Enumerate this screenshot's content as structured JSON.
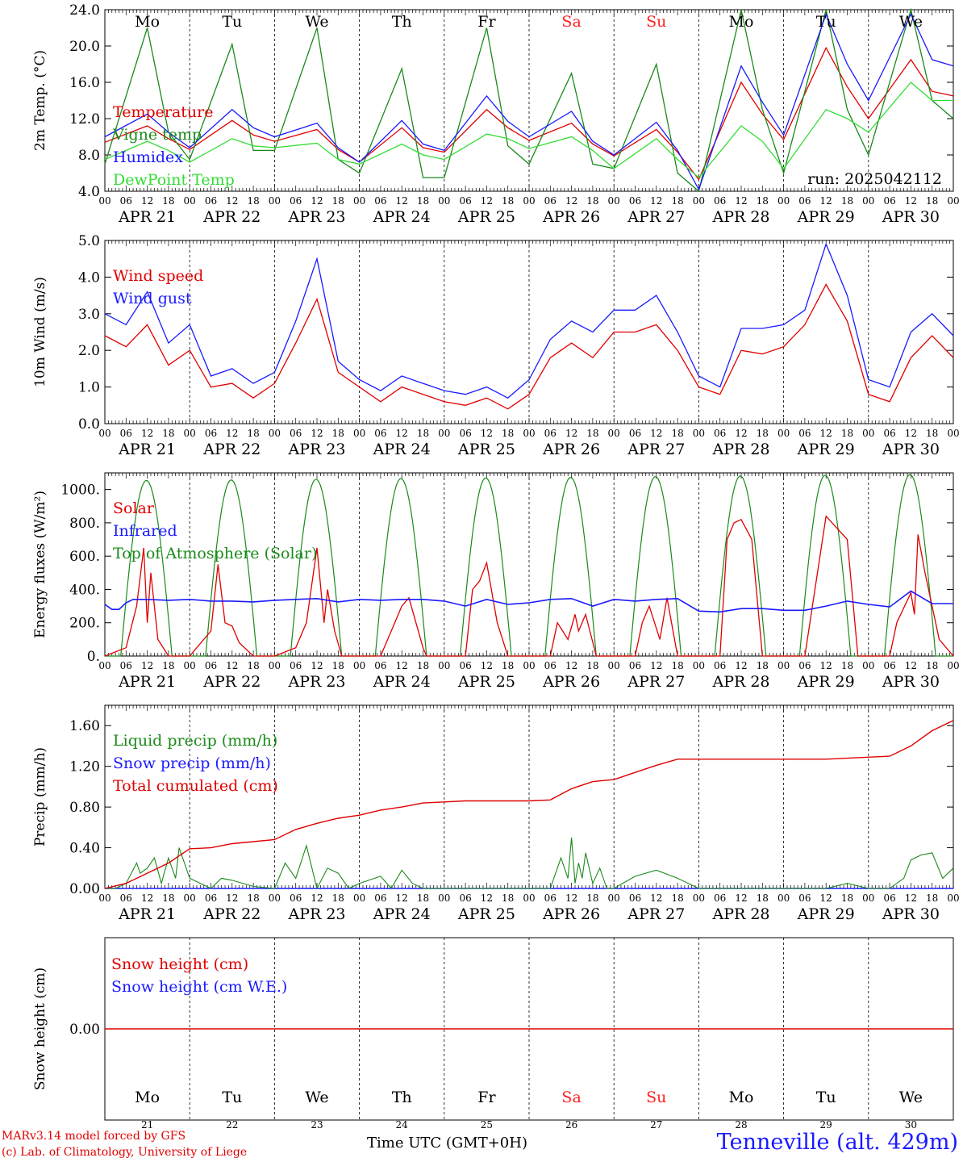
{
  "days": [
    {
      "date": "APR 21",
      "dow": "Mo",
      "num": "21",
      "weekend": false
    },
    {
      "date": "APR 22",
      "dow": "Tu",
      "num": "22",
      "weekend": false
    },
    {
      "date": "APR 23",
      "dow": "We",
      "num": "23",
      "weekend": false
    },
    {
      "date": "APR 24",
      "dow": "Th",
      "num": "24",
      "weekend": false
    },
    {
      "date": "APR 25",
      "dow": "Fr",
      "num": "25",
      "weekend": false
    },
    {
      "date": "APR 26",
      "dow": "Sa",
      "num": "26",
      "weekend": true
    },
    {
      "date": "APR 27",
      "dow": "Su",
      "num": "27",
      "weekend": true
    },
    {
      "date": "APR 28",
      "dow": "Mo",
      "num": "28",
      "weekend": false
    },
    {
      "date": "APR 29",
      "dow": "Tu",
      "num": "29",
      "weekend": false
    },
    {
      "date": "APR 30",
      "dow": "We",
      "num": "30",
      "weekend": false
    }
  ],
  "hour_ticks": [
    "00",
    "06",
    "12",
    "18"
  ],
  "last_tick": "00",
  "colors": {
    "red": "#e00000",
    "green": "#1a8a1a",
    "blue": "#1a1aff",
    "lightgreen": "#33dd33",
    "weekend": "#ff2020",
    "axis": "#000000"
  },
  "footer": {
    "credit1": "MARv3.14 model forced by GFS",
    "credit2": "(c) Lab. of Climatology, University of Liege",
    "time_label": "Time UTC (GMT+0H)",
    "station": "Tenneville (alt. 429m)"
  },
  "chart_data": [
    {
      "type": "line",
      "ylabel": "2m Temp. (°C)",
      "ylim": [
        4,
        24
      ],
      "yticks": [
        "4.0",
        "8.0",
        "12.0",
        "16.0",
        "20.0",
        "24.0"
      ],
      "ytick_values": [
        4,
        8,
        12,
        16,
        20,
        24
      ],
      "annotation": "run: 2025042112",
      "x_hours": [
        0,
        12,
        18,
        24,
        36,
        42,
        48,
        60,
        66,
        72,
        84,
        90,
        96,
        108,
        114,
        120,
        132,
        138,
        144,
        156,
        162,
        168,
        180,
        186,
        192,
        204,
        210,
        216,
        228,
        234,
        240
      ],
      "series": [
        {
          "name": "Temperature",
          "color": "red",
          "values": [
            9.4,
            11.2,
            9.8,
            8.6,
            11.8,
            10.2,
            9.5,
            10.8,
            8.6,
            7.2,
            11.0,
            8.8,
            8.3,
            13.0,
            11.0,
            9.6,
            11.5,
            9.2,
            7.9,
            10.8,
            8.3,
            5.3,
            16.0,
            12.5,
            9.7,
            19.8,
            15.5,
            12.0,
            18.5,
            15.0,
            14.5
          ]
        },
        {
          "name": "Vigne temp",
          "color": "green",
          "values": [
            7.0,
            22.0,
            10.5,
            7.5,
            20.2,
            8.5,
            8.5,
            22.0,
            7.5,
            6.0,
            17.5,
            5.5,
            5.5,
            22.0,
            9.0,
            7.0,
            17.0,
            7.0,
            6.5,
            18.0,
            6.0,
            4.0,
            24.0,
            13.0,
            6.0,
            24.0,
            13.0,
            8.0,
            24.0,
            14.0,
            12.0
          ]
        },
        {
          "name": "Humidex",
          "color": "blue",
          "values": [
            10.0,
            12.5,
            10.5,
            8.8,
            13.0,
            11.0,
            10.0,
            11.5,
            8.8,
            7.2,
            11.8,
            9.2,
            8.5,
            14.5,
            11.7,
            10.0,
            12.8,
            9.5,
            8.0,
            11.6,
            8.5,
            4.2,
            17.8,
            13.8,
            10.2,
            23.5,
            18.0,
            14.0,
            23.5,
            18.5,
            17.8
          ]
        },
        {
          "name": "DewPoint Temp",
          "color": "lightgreen",
          "values": [
            7.5,
            9.5,
            8.5,
            7.2,
            9.8,
            9.0,
            8.8,
            9.3,
            7.5,
            7.0,
            9.2,
            8.0,
            7.5,
            10.3,
            9.8,
            8.7,
            10.0,
            8.5,
            6.5,
            9.8,
            7.5,
            5.5,
            11.2,
            9.5,
            6.5,
            13.0,
            12.0,
            10.5,
            16.0,
            14.0,
            14.0
          ]
        }
      ]
    },
    {
      "type": "line",
      "ylabel": "10m Wind (m/s)",
      "ylim": [
        0,
        5
      ],
      "yticks": [
        "0.0",
        "1.0",
        "2.0",
        "3.0",
        "4.0",
        "5.0"
      ],
      "ytick_values": [
        0,
        1,
        2,
        3,
        4,
        5
      ],
      "x_hours": [
        0,
        6,
        12,
        18,
        24,
        30,
        36,
        42,
        48,
        54,
        60,
        66,
        72,
        78,
        84,
        90,
        96,
        102,
        108,
        114,
        120,
        126,
        132,
        138,
        144,
        150,
        156,
        162,
        168,
        174,
        180,
        186,
        192,
        198,
        204,
        210,
        216,
        222,
        228,
        234,
        240
      ],
      "series": [
        {
          "name": "Wind speed",
          "color": "red",
          "values": [
            2.4,
            2.1,
            2.7,
            1.6,
            2.0,
            1.0,
            1.1,
            0.7,
            1.1,
            2.2,
            3.4,
            1.4,
            1.0,
            0.6,
            1.0,
            0.8,
            0.6,
            0.5,
            0.7,
            0.4,
            0.8,
            1.8,
            2.2,
            1.8,
            2.5,
            2.5,
            2.7,
            2.0,
            1.0,
            0.8,
            2.0,
            1.9,
            2.1,
            2.7,
            3.8,
            2.8,
            0.8,
            0.6,
            1.8,
            2.4,
            1.8
          ]
        },
        {
          "name": "Wind gust",
          "color": "blue",
          "values": [
            3.0,
            2.7,
            3.6,
            2.2,
            2.7,
            1.3,
            1.5,
            1.1,
            1.4,
            2.8,
            4.5,
            1.7,
            1.2,
            0.9,
            1.3,
            1.1,
            0.9,
            0.8,
            1.0,
            0.7,
            1.2,
            2.3,
            2.8,
            2.5,
            3.1,
            3.1,
            3.5,
            2.5,
            1.3,
            1.0,
            2.6,
            2.6,
            2.7,
            3.1,
            4.9,
            3.5,
            1.2,
            1.0,
            2.5,
            3.0,
            2.4
          ]
        }
      ]
    },
    {
      "type": "line",
      "ylabel": "Energy fluxes (W/m²)",
      "ylim": [
        0,
        1100
      ],
      "yticks": [
        "0.",
        "200.",
        "400.",
        "600.",
        "800.",
        "1000."
      ],
      "ytick_values": [
        0,
        200,
        400,
        600,
        800,
        1000
      ],
      "sunrise_hour": 4.5,
      "sunset_hour": 19.0,
      "toa_peaks": [
        1055,
        1058,
        1062,
        1066,
        1070,
        1074,
        1078,
        1082,
        1086,
        1090
      ],
      "solar_x_hours": [
        0,
        6,
        9,
        11,
        12,
        13,
        15,
        18,
        19,
        24,
        30,
        32,
        34,
        36,
        38,
        42,
        43,
        48,
        54,
        57,
        60,
        62,
        63,
        65,
        67,
        72,
        78,
        81,
        84,
        86,
        90,
        91,
        96,
        102,
        104,
        106,
        108,
        111,
        114,
        120,
        126,
        128,
        131,
        133,
        134,
        136,
        139,
        144,
        150,
        152,
        154,
        157,
        159,
        162,
        168,
        174,
        176,
        178,
        180,
        183,
        186,
        192,
        198,
        204,
        210,
        213,
        216,
        222,
        224,
        228,
        229,
        230,
        232,
        234,
        236,
        240
      ],
      "solar_values": [
        0,
        50,
        300,
        650,
        200,
        500,
        100,
        0,
        0,
        0,
        150,
        550,
        200,
        180,
        80,
        0,
        0,
        0,
        50,
        200,
        650,
        200,
        400,
        150,
        0,
        0,
        0,
        150,
        300,
        350,
        50,
        0,
        0,
        0,
        400,
        450,
        560,
        200,
        0,
        0,
        0,
        200,
        100,
        250,
        150,
        250,
        0,
        0,
        0,
        200,
        300,
        100,
        350,
        0,
        0,
        0,
        700,
        800,
        820,
        700,
        0,
        0,
        0,
        840,
        700,
        0,
        0,
        0,
        200,
        380,
        250,
        730,
        500,
        300,
        100,
        0
      ],
      "ir_x_hours": [
        0,
        2,
        4,
        6,
        8,
        12,
        18,
        24,
        30,
        36,
        42,
        48,
        54,
        60,
        66,
        72,
        78,
        84,
        90,
        96,
        102,
        108,
        114,
        120,
        126,
        132,
        138,
        144,
        150,
        156,
        162,
        168,
        174,
        180,
        186,
        192,
        198,
        204,
        210,
        216,
        222,
        228,
        234,
        240
      ],
      "ir_values": [
        310,
        280,
        280,
        320,
        340,
        340,
        335,
        340,
        330,
        330,
        325,
        335,
        340,
        345,
        325,
        340,
        335,
        340,
        340,
        330,
        300,
        340,
        310,
        320,
        340,
        345,
        300,
        340,
        330,
        340,
        345,
        270,
        265,
        285,
        285,
        275,
        275,
        300,
        330,
        310,
        295,
        390,
        315,
        315
      ],
      "series": [
        {
          "name": "Solar",
          "color": "red"
        },
        {
          "name": "Infrared",
          "color": "blue"
        },
        {
          "name": "Top of Atmosphere (Solar)",
          "color": "green"
        }
      ]
    },
    {
      "type": "line",
      "ylabel": "Precip (mm/h)",
      "ylim": [
        0,
        1.8
      ],
      "yticks": [
        "0.00",
        "0.40",
        "0.80",
        "1.20",
        "1.60"
      ],
      "ytick_values": [
        0,
        0.4,
        0.8,
        1.2,
        1.6
      ],
      "cum_x_hours": [
        0,
        6,
        12,
        18,
        24,
        30,
        36,
        42,
        48,
        54,
        60,
        66,
        72,
        78,
        84,
        90,
        96,
        102,
        108,
        114,
        120,
        126,
        132,
        138,
        144,
        150,
        156,
        162,
        168,
        174,
        180,
        186,
        192,
        198,
        204,
        210,
        216,
        222,
        228,
        234,
        240
      ],
      "cum_values": [
        0,
        0.05,
        0.15,
        0.25,
        0.39,
        0.4,
        0.44,
        0.46,
        0.48,
        0.58,
        0.64,
        0.69,
        0.72,
        0.77,
        0.8,
        0.84,
        0.85,
        0.86,
        0.86,
        0.86,
        0.86,
        0.87,
        0.98,
        1.05,
        1.07,
        1.14,
        1.21,
        1.27,
        1.27,
        1.27,
        1.27,
        1.27,
        1.27,
        1.27,
        1.27,
        1.28,
        1.29,
        1.3,
        1.4,
        1.55,
        1.65
      ],
      "liq_x_hours": [
        0,
        3,
        6,
        9,
        10,
        12,
        14,
        16,
        18,
        20,
        21,
        24,
        30,
        33,
        36,
        42,
        48,
        51,
        54,
        57,
        60,
        63,
        66,
        69,
        72,
        78,
        81,
        84,
        87,
        90,
        96,
        102,
        108,
        114,
        120,
        126,
        129,
        131,
        132,
        133,
        134,
        135,
        136,
        138,
        140,
        142,
        144,
        150,
        156,
        162,
        168,
        174,
        180,
        186,
        192,
        198,
        204,
        210,
        216,
        222,
        226,
        228,
        231,
        234,
        237,
        240
      ],
      "liq_values": [
        0,
        0,
        0.05,
        0.25,
        0.15,
        0.2,
        0.3,
        0.05,
        0.3,
        0.1,
        0.4,
        0.1,
        0,
        0.1,
        0.08,
        0.02,
        0,
        0.25,
        0.1,
        0.42,
        0,
        0.2,
        0.15,
        0,
        0.05,
        0.12,
        0,
        0.18,
        0.05,
        0,
        0,
        0,
        0,
        0,
        0,
        0,
        0.3,
        0.1,
        0.5,
        0.05,
        0.25,
        0.1,
        0.35,
        0.05,
        0.2,
        0,
        0,
        0.12,
        0.18,
        0.1,
        0,
        0,
        0,
        0,
        0,
        0,
        0,
        0.05,
        0,
        0,
        0.1,
        0.28,
        0.33,
        0.35,
        0.1,
        0.2
      ]
    },
    {
      "type": "line",
      "ylabel": "Snow height (cm)",
      "ylim": [
        -1,
        1
      ],
      "yticks": [
        "0.00"
      ],
      "ytick_values": [
        0
      ],
      "series": [
        {
          "name": "Snow height (cm)",
          "color": "red",
          "values": [
            0,
            0
          ]
        },
        {
          "name": "Snow height (cm W.E.)",
          "color": "blue",
          "values": [
            0,
            0
          ]
        }
      ]
    }
  ]
}
